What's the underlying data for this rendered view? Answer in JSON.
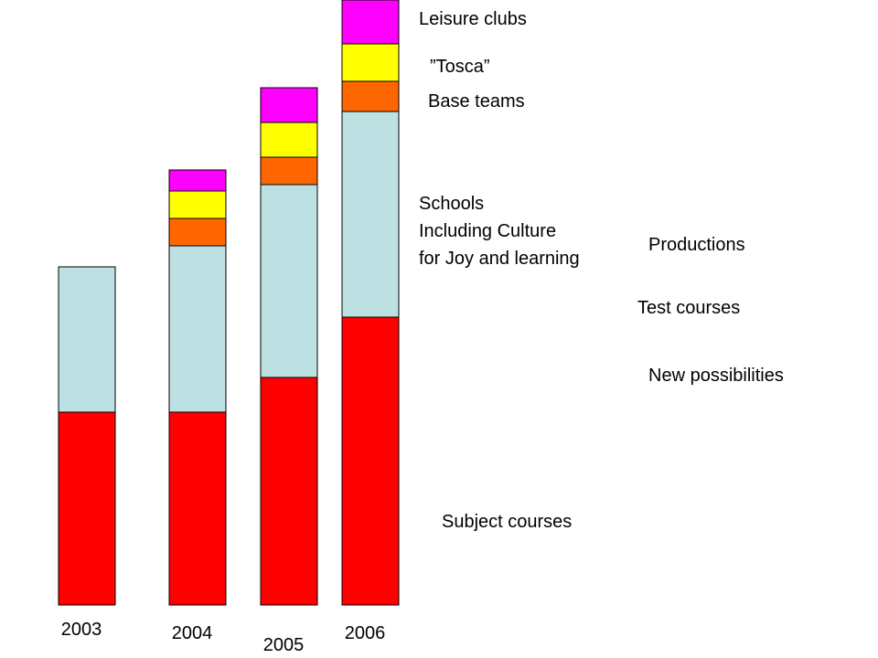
{
  "chart_data": {
    "type": "bar",
    "stacked": true,
    "categories": [
      "2003",
      "2004",
      "2005",
      "2006"
    ],
    "series": [
      {
        "name": "Subject courses",
        "color": "#ff0000",
        "values": [
          211,
          211,
          249,
          315
        ]
      },
      {
        "name": "Schools Including Culture for Joy and learning",
        "color": "#bde0e2",
        "values": [
          159,
          182,
          211,
          225
        ]
      },
      {
        "name": "Base teams",
        "color": "#ff6600",
        "values": [
          0,
          30,
          30,
          33
        ]
      },
      {
        "name": "”Tosca”",
        "color": "#ffff00",
        "values": [
          0,
          30,
          38,
          41
        ]
      },
      {
        "name": "Leisure clubs",
        "color": "#ff00ff",
        "values": [
          0,
          23,
          38,
          48
        ]
      }
    ],
    "ylim": [
      0,
      662
    ],
    "legend": "right",
    "series_labels": [
      {
        "series": 4,
        "lines": [
          "Leisure clubs"
        ]
      },
      {
        "series": 3,
        "lines": [
          "”Tosca”"
        ]
      },
      {
        "series": 2,
        "lines": [
          "Base teams"
        ]
      },
      {
        "series": 1,
        "lines": [
          "Schools",
          "Including Culture",
          "for Joy and learning"
        ]
      },
      {
        "series": 0,
        "lines": [
          "Subject courses"
        ]
      }
    ],
    "annotations": [
      "Productions",
      "Test courses",
      "New possibilities"
    ]
  }
}
